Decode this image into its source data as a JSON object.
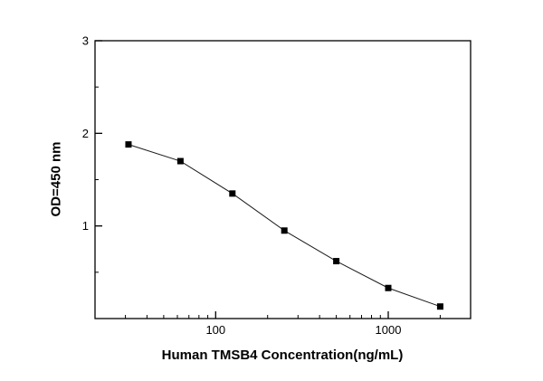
{
  "chart_data": {
    "type": "line",
    "x": [
      31.25,
      62.5,
      125,
      250,
      500,
      1000,
      2000
    ],
    "y": [
      1.88,
      1.7,
      1.35,
      0.95,
      0.62,
      0.33,
      0.13
    ],
    "xlabel": "Human TMSB4  Concentration(ng/mL)",
    "ylabel": "OD=450 nm",
    "x_scale": "log",
    "xlim": [
      20,
      3000
    ],
    "ylim": [
      0,
      3
    ],
    "x_major_ticks": {
      "values": [
        100,
        1000
      ],
      "labels": [
        "100",
        "1000"
      ]
    },
    "y_major_ticks": {
      "values": [
        1,
        2,
        3
      ],
      "labels": [
        "1",
        "2",
        "3"
      ]
    },
    "y_minor_step": 0.5,
    "marker": "filled-square",
    "marker_color": "#000000",
    "line_color": "#1a1a1a",
    "axis_color": "#000000",
    "background": "#ffffff",
    "grid": false,
    "legend": "none",
    "title": ""
  }
}
